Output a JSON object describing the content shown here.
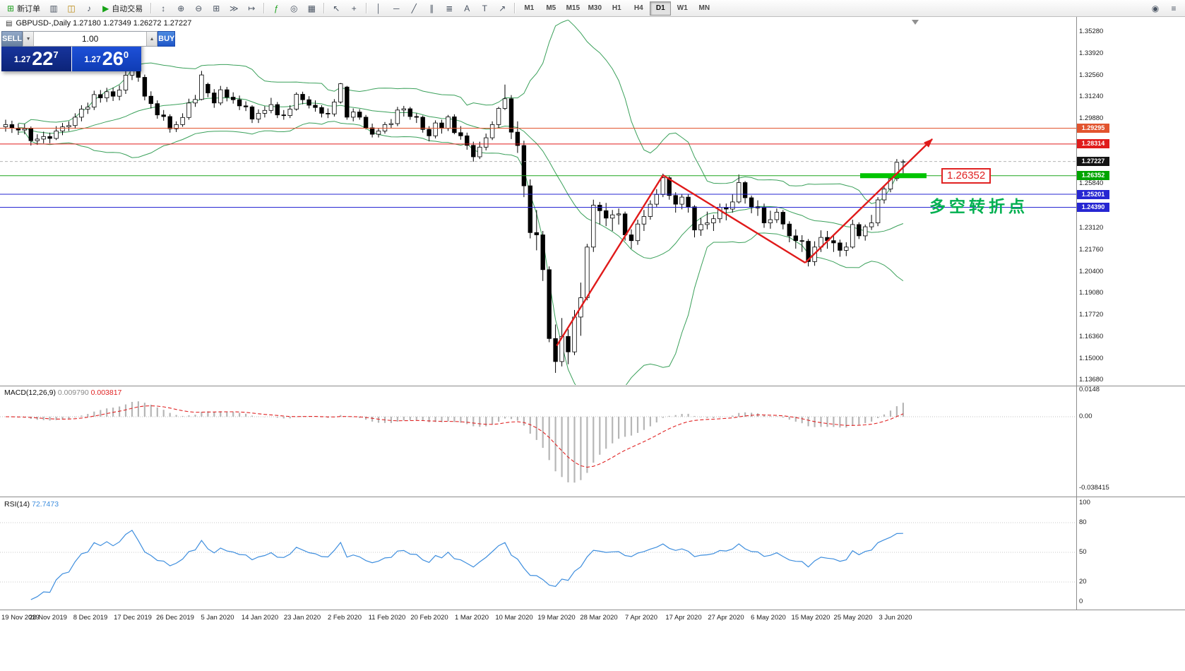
{
  "toolbar": {
    "items": [
      {
        "kind": "button",
        "name": "new-order-button",
        "glyph": "⊞",
        "glyphColor": "#1fa01f",
        "label": "新订单"
      },
      {
        "kind": "icon",
        "name": "charts-icon",
        "glyph": "▥"
      },
      {
        "kind": "icon",
        "name": "market-watch-icon",
        "glyph": "◫",
        "color": "#b8860b"
      },
      {
        "kind": "icon",
        "name": "alert-sound-icon",
        "glyph": "♪"
      },
      {
        "kind": "button",
        "name": "autotrading-button",
        "glyph": "▶",
        "glyphColor": "#17a317",
        "label": "自动交易"
      },
      {
        "kind": "sep"
      },
      {
        "kind": "icon",
        "name": "tick-chart-icon",
        "glyph": "↕"
      },
      {
        "kind": "icon",
        "name": "zoom-in-icon",
        "glyph": "⊕"
      },
      {
        "kind": "icon",
        "name": "zoom-out-icon",
        "glyph": "⊖"
      },
      {
        "kind": "icon",
        "name": "tile-windows-icon",
        "glyph": "⊞"
      },
      {
        "kind": "icon",
        "name": "auto-scroll-icon",
        "glyph": "≫"
      },
      {
        "kind": "icon",
        "name": "chart-shift-icon",
        "glyph": "↦"
      },
      {
        "kind": "sep"
      },
      {
        "kind": "icon",
        "name": "indicators-icon",
        "glyph": "ƒ",
        "color": "#1fa01f"
      },
      {
        "kind": "icon",
        "name": "periods-icon",
        "glyph": "◎"
      },
      {
        "kind": "icon",
        "name": "templates-icon",
        "glyph": "▦"
      },
      {
        "kind": "sep"
      },
      {
        "kind": "icon",
        "name": "cursor-icon",
        "glyph": "↖"
      },
      {
        "kind": "icon",
        "name": "crosshair-icon",
        "glyph": "+"
      },
      {
        "kind": "sep"
      },
      {
        "kind": "icon",
        "name": "vertical-line-icon",
        "glyph": "│"
      },
      {
        "kind": "icon",
        "name": "horizontal-line-icon",
        "glyph": "─"
      },
      {
        "kind": "icon",
        "name": "trendline-icon",
        "glyph": "╱"
      },
      {
        "kind": "icon",
        "name": "channel-icon",
        "glyph": "∥"
      },
      {
        "kind": "icon",
        "name": "fibonacci-icon",
        "glyph": "≣"
      },
      {
        "kind": "icon",
        "name": "text-icon",
        "glyph": "A"
      },
      {
        "kind": "icon",
        "name": "label-icon",
        "glyph": "T"
      },
      {
        "kind": "icon",
        "name": "arrows-icon",
        "glyph": "↗"
      },
      {
        "kind": "sep"
      }
    ],
    "timeframes": [
      {
        "label": "M1"
      },
      {
        "label": "M5"
      },
      {
        "label": "M15"
      },
      {
        "label": "M30"
      },
      {
        "label": "H1"
      },
      {
        "label": "H4"
      },
      {
        "label": "D1",
        "active": true
      },
      {
        "label": "W1"
      },
      {
        "label": "MN"
      }
    ],
    "right_icons": [
      {
        "name": "search-icon",
        "glyph": "◉"
      },
      {
        "name": "window-menu-icon",
        "glyph": "≡"
      }
    ]
  },
  "quote": {
    "sell_label": "SELL",
    "buy_label": "BUY",
    "volume": "1.00",
    "sell": {
      "prefix": "1.27",
      "big": "22",
      "sup": "7"
    },
    "buy": {
      "prefix": "1.27",
      "big": "26",
      "sup": "0"
    }
  },
  "chart": {
    "title": "GBPUSD-,Daily  1.27180 1.27349 1.26272 1.27227",
    "price_axis_labels": [
      "1.35280",
      "1.33920",
      "1.32560",
      "1.31240",
      "1.29880",
      "1.25840",
      "1.23120",
      "1.21760",
      "1.20400",
      "1.19080",
      "1.17720",
      "1.16360",
      "1.15000",
      "1.13680"
    ],
    "price_tags": [
      {
        "text": "1.29295",
        "price": 1.29295,
        "color": "#e2542e"
      },
      {
        "text": "1.28314",
        "price": 1.28314,
        "color": "#e01c1c"
      },
      {
        "text": "1.27227",
        "price": 1.27227,
        "color": "#141414"
      },
      {
        "text": "1.26352",
        "price": 1.26352,
        "color": "#00a400"
      },
      {
        "text": "1.25201",
        "price": 1.25201,
        "color": "#2626d2"
      },
      {
        "text": "1.24390",
        "price": 1.2439,
        "color": "#2626d2"
      }
    ],
    "date_labels": [
      "19 Nov 2019",
      "28 Nov 2019",
      "8 Dec 2019",
      "17 Dec 2019",
      "26 Dec 2019",
      "5 Jan 2020",
      "14 Jan 2020",
      "23 Jan 2020",
      "2 Feb 2020",
      "11 Feb 2020",
      "20 Feb 2020",
      "1 Mar 2020",
      "10 Mar 2020",
      "19 Mar 2020",
      "28 Mar 2020",
      "7 Apr 2020",
      "17 Apr 2020",
      "27 Apr 2020",
      "6 May 2020",
      "15 May 2020",
      "25 May 2020",
      "3 Jun 2020"
    ]
  },
  "levels": [
    {
      "price": 1.29295,
      "color": "#e2542e"
    },
    {
      "price": 1.28314,
      "color": "#e01c1c"
    },
    {
      "price": 1.26352,
      "color": "#1fa51f"
    },
    {
      "price": 1.25201,
      "color": "#2626d2"
    },
    {
      "price": 1.2439,
      "color": "#2626d2"
    }
  ],
  "current_price": {
    "text": "1.27227",
    "price": 1.27227
  },
  "annotations": {
    "support_zone": {
      "price": 1.26352,
      "from_idx": 135.2,
      "to_idx": 145.7,
      "color": "#00c400",
      "label": "1.26352"
    },
    "turning_point": {
      "text": "多空转折点",
      "color": "#00b050"
    },
    "zigzag": {
      "color": "#e01a1a",
      "points": [
        [
          87.2,
          1.158
        ],
        [
          104,
          1.2638
        ],
        [
          126.5,
          1.2095
        ],
        [
          146.6,
          1.2862
        ]
      ]
    }
  },
  "macd": {
    "label": "MACD(12,26,9)",
    "value_main": "0.009790",
    "value_signal": "0.003817",
    "scale_labels": [
      "0.0148",
      "0.00",
      "-0.038415"
    ],
    "histogram_color": "#b6b6b6",
    "signal_color": "#e02222"
  },
  "rsi": {
    "label": "RSI(14)",
    "value": "72.7473",
    "scale_labels": [
      "100",
      "80",
      "50",
      "20",
      "0"
    ],
    "levels": [
      80,
      50,
      20
    ],
    "color": "#3e8ede"
  },
  "chart_data": {
    "type": "candlestick",
    "symbol": "GBPUSD-",
    "timeframe": "Daily",
    "title": "GBPUSD-,Daily",
    "last_bar_ohlc": {
      "open": 1.2718,
      "high": 1.27349,
      "low": 1.26272,
      "close": 1.27227
    },
    "price_range_hint": [
      1.1337,
      1.3602
    ],
    "overlays": [
      {
        "name": "Bollinger Bands",
        "period": 20,
        "deviation": 2,
        "color": "#3aa05a"
      }
    ],
    "ohlc": [
      [
        1.2938,
        1.2982,
        1.2908,
        1.2952
      ],
      [
        1.2952,
        1.2976,
        1.29,
        1.293
      ],
      [
        1.293,
        1.2958,
        1.2888,
        1.2918
      ],
      [
        1.2918,
        1.2956,
        1.2892,
        1.2926
      ],
      [
        1.2926,
        1.294,
        1.2822,
        1.2852
      ],
      [
        1.2852,
        1.2892,
        1.2826,
        1.2862
      ],
      [
        1.2862,
        1.2908,
        1.2836,
        1.2878
      ],
      [
        1.2878,
        1.2902,
        1.2836,
        1.2866
      ],
      [
        1.2866,
        1.2942,
        1.2856,
        1.2912
      ],
      [
        1.2912,
        1.2962,
        1.2886,
        1.2938
      ],
      [
        1.2938,
        1.2972,
        1.2912,
        1.2946
      ],
      [
        1.2946,
        1.3022,
        1.2926,
        1.2998
      ],
      [
        1.2998,
        1.3072,
        1.2972,
        1.3048
      ],
      [
        1.3048,
        1.3088,
        1.3018,
        1.306
      ],
      [
        1.306,
        1.3162,
        1.3042,
        1.3138
      ],
      [
        1.3138,
        1.3166,
        1.3088,
        1.3118
      ],
      [
        1.3118,
        1.318,
        1.3092,
        1.3156
      ],
      [
        1.3156,
        1.3182,
        1.3098,
        1.3128
      ],
      [
        1.3128,
        1.3196,
        1.3102,
        1.3166
      ],
      [
        1.3166,
        1.3286,
        1.3142,
        1.3258
      ],
      [
        1.3258,
        1.335,
        1.3228,
        1.3325
      ],
      [
        1.3325,
        1.3338,
        1.3218,
        1.3245
      ],
      [
        1.3245,
        1.3262,
        1.3102,
        1.3128
      ],
      [
        1.3128,
        1.3158,
        1.3052,
        1.3082
      ],
      [
        1.3082,
        1.3102,
        1.2988,
        1.3012
      ],
      [
        1.3012,
        1.3042,
        1.2976,
        1.3002
      ],
      [
        1.3002,
        1.3016,
        1.2902,
        1.2926
      ],
      [
        1.2926,
        1.2972,
        1.2906,
        1.2952
      ],
      [
        1.2952,
        1.3022,
        1.2938,
        1.2996
      ],
      [
        1.2996,
        1.3112,
        1.2982,
        1.3086
      ],
      [
        1.3086,
        1.3136,
        1.3062,
        1.3108
      ],
      [
        1.3108,
        1.3285,
        1.3102,
        1.326
      ],
      [
        1.3202,
        1.3212,
        1.3122,
        1.3148
      ],
      [
        1.3148,
        1.3172,
        1.3056,
        1.3086
      ],
      [
        1.3086,
        1.3192,
        1.3072,
        1.3168
      ],
      [
        1.3168,
        1.3186,
        1.3096,
        1.3122
      ],
      [
        1.3122,
        1.3152,
        1.3082,
        1.3106
      ],
      [
        1.3106,
        1.3132,
        1.3042,
        1.3068
      ],
      [
        1.3068,
        1.3096,
        1.3036,
        1.3062
      ],
      [
        1.3062,
        1.3072,
        1.2962,
        1.2986
      ],
      [
        1.2986,
        1.3046,
        1.2962,
        1.3022
      ],
      [
        1.3022,
        1.3066,
        1.2996,
        1.304
      ],
      [
        1.304,
        1.3118,
        1.3022,
        1.3076
      ],
      [
        1.3076,
        1.3092,
        1.2992,
        1.3012
      ],
      [
        1.3012,
        1.3042,
        1.2982,
        1.3008
      ],
      [
        1.3008,
        1.3072,
        1.2992,
        1.3048
      ],
      [
        1.3048,
        1.3152,
        1.3038,
        1.314
      ],
      [
        1.314,
        1.3156,
        1.3078,
        1.3106
      ],
      [
        1.3106,
        1.3128,
        1.3052,
        1.3072
      ],
      [
        1.3072,
        1.3102,
        1.3032,
        1.3058
      ],
      [
        1.3058,
        1.3072,
        1.2996,
        1.3022
      ],
      [
        1.3022,
        1.3052,
        1.2992,
        1.3018
      ],
      [
        1.3018,
        1.311,
        1.3002,
        1.3092
      ],
      [
        1.3092,
        1.321,
        1.3082,
        1.3205
      ],
      [
        1.3185,
        1.3192,
        1.2982,
        1.2998
      ],
      [
        1.2998,
        1.3052,
        1.2972,
        1.303
      ],
      [
        1.303,
        1.3048,
        1.2982,
        1.2998
      ],
      [
        1.2998,
        1.3012,
        1.2922,
        1.2932
      ],
      [
        1.2932,
        1.2958,
        1.2872,
        1.2892
      ],
      [
        1.2892,
        1.2928,
        1.2872,
        1.2912
      ],
      [
        1.2912,
        1.2968,
        1.2896,
        1.2952
      ],
      [
        1.2952,
        1.2986,
        1.2932,
        1.2958
      ],
      [
        1.2958,
        1.3062,
        1.2942,
        1.3042
      ],
      [
        1.3042,
        1.3068,
        1.3002,
        1.305
      ],
      [
        1.305,
        1.3062,
        1.2982,
        1.3002
      ],
      [
        1.3002,
        1.3022,
        1.2962,
        1.2998
      ],
      [
        1.2998,
        1.3008,
        1.2902,
        1.2922
      ],
      [
        1.2922,
        1.2942,
        1.2848,
        1.2882
      ],
      [
        1.2882,
        1.2978,
        1.2866,
        1.2962
      ],
      [
        1.2962,
        1.2982,
        1.2896,
        1.2928
      ],
      [
        1.2928,
        1.3012,
        1.2912,
        1.3
      ],
      [
        1.3,
        1.3016,
        1.2892,
        1.2902
      ],
      [
        1.2902,
        1.2942,
        1.2858,
        1.2882
      ],
      [
        1.2882,
        1.2902,
        1.2796,
        1.2823
      ],
      [
        1.2823,
        1.2846,
        1.2722,
        1.2752
      ],
      [
        1.2752,
        1.2846,
        1.2738,
        1.2812
      ],
      [
        1.2812,
        1.2896,
        1.2792,
        1.287
      ],
      [
        1.287,
        1.2972,
        1.2856,
        1.2952
      ],
      [
        1.2952,
        1.3062,
        1.2932,
        1.3052
      ],
      [
        1.3052,
        1.32,
        1.3042,
        1.3112
      ],
      [
        1.3112,
        1.3135,
        1.2862,
        1.2905
      ],
      [
        1.2905,
        1.2972,
        1.2776,
        1.2822
      ],
      [
        1.2822,
        1.2852,
        1.2502,
        1.2572
      ],
      [
        1.2572,
        1.2612,
        1.2246,
        1.2282
      ],
      [
        1.2282,
        1.2422,
        1.2172,
        1.2268
      ],
      [
        1.2268,
        1.2292,
        1.1982,
        1.2052
      ],
      [
        1.2052,
        1.2072,
        1.1602,
        1.1625
      ],
      [
        1.1625,
        1.1712,
        1.1412,
        1.1482
      ],
      [
        1.1482,
        1.1752,
        1.1452,
        1.1638
      ],
      [
        1.1638,
        1.1682,
        1.1466,
        1.1542
      ],
      [
        1.1542,
        1.1802,
        1.1522,
        1.1758
      ],
      [
        1.1758,
        1.1972,
        1.1642,
        1.1878
      ],
      [
        1.1878,
        1.2212,
        1.1862,
        1.2192
      ],
      [
        1.2192,
        1.2486,
        1.2162,
        1.2452
      ],
      [
        1.2452,
        1.2472,
        1.2332,
        1.2418
      ],
      [
        1.2418,
        1.2466,
        1.2322,
        1.2372
      ],
      [
        1.2372,
        1.2422,
        1.2292,
        1.2392
      ],
      [
        1.2392,
        1.2432,
        1.2332,
        1.2398
      ],
      [
        1.2398,
        1.2412,
        1.2232,
        1.2268
      ],
      [
        1.2268,
        1.2302,
        1.2182,
        1.2232
      ],
      [
        1.2232,
        1.2362,
        1.2206,
        1.2335
      ],
      [
        1.2335,
        1.2422,
        1.2292,
        1.2382
      ],
      [
        1.2382,
        1.2482,
        1.2362,
        1.2458
      ],
      [
        1.2458,
        1.2552,
        1.2442,
        1.2518
      ],
      [
        1.2518,
        1.2648,
        1.2502,
        1.2622
      ],
      [
        1.2622,
        1.2632,
        1.2486,
        1.2512
      ],
      [
        1.2512,
        1.2532,
        1.2406,
        1.2458
      ],
      [
        1.2458,
        1.2522,
        1.2426,
        1.2502
      ],
      [
        1.2502,
        1.2518,
        1.2406,
        1.2442
      ],
      [
        1.2442,
        1.2452,
        1.2252,
        1.2298
      ],
      [
        1.2298,
        1.2372,
        1.2262,
        1.2332
      ],
      [
        1.2332,
        1.2412,
        1.2302,
        1.2342
      ],
      [
        1.2342,
        1.2392,
        1.2292,
        1.2368
      ],
      [
        1.2368,
        1.2462,
        1.2342,
        1.2438
      ],
      [
        1.2438,
        1.2462,
        1.2358,
        1.2428
      ],
      [
        1.2428,
        1.2518,
        1.2406,
        1.2472
      ],
      [
        1.2472,
        1.2642,
        1.2462,
        1.2592
      ],
      [
        1.2592,
        1.2602,
        1.2462,
        1.2498
      ],
      [
        1.2498,
        1.2512,
        1.2402,
        1.2442
      ],
      [
        1.2442,
        1.2482,
        1.2386,
        1.2435
      ],
      [
        1.2435,
        1.2462,
        1.2312,
        1.2342
      ],
      [
        1.2342,
        1.2418,
        1.2306,
        1.2362
      ],
      [
        1.2362,
        1.2432,
        1.2342,
        1.2408
      ],
      [
        1.2408,
        1.2422,
        1.2302,
        1.2335
      ],
      [
        1.2335,
        1.2352,
        1.2222,
        1.2262
      ],
      [
        1.2262,
        1.2302,
        1.2182,
        1.2232
      ],
      [
        1.2232,
        1.2266,
        1.2162,
        1.2228
      ],
      [
        1.2228,
        1.2242,
        1.2072,
        1.2102
      ],
      [
        1.2102,
        1.2228,
        1.2076,
        1.2192
      ],
      [
        1.2192,
        1.2296,
        1.2162,
        1.2252
      ],
      [
        1.2252,
        1.2292,
        1.2182,
        1.2232
      ],
      [
        1.2232,
        1.2262,
        1.2162,
        1.2218
      ],
      [
        1.2218,
        1.2238,
        1.2132,
        1.2172
      ],
      [
        1.2172,
        1.2222,
        1.2136,
        1.2192
      ],
      [
        1.2192,
        1.2362,
        1.2182,
        1.2332
      ],
      [
        1.2332,
        1.2346,
        1.2242,
        1.2262
      ],
      [
        1.2262,
        1.2332,
        1.2232,
        1.2318
      ],
      [
        1.2318,
        1.2392,
        1.2298,
        1.2342
      ],
      [
        1.2342,
        1.2502,
        1.2322,
        1.2485
      ],
      [
        1.2485,
        1.2572,
        1.2462,
        1.2552
      ],
      [
        1.2552,
        1.2632,
        1.2532,
        1.2617
      ],
      [
        1.2617,
        1.2738,
        1.2602,
        1.2718
      ],
      [
        1.2718,
        1.27349,
        1.26272,
        1.27227
      ]
    ]
  }
}
